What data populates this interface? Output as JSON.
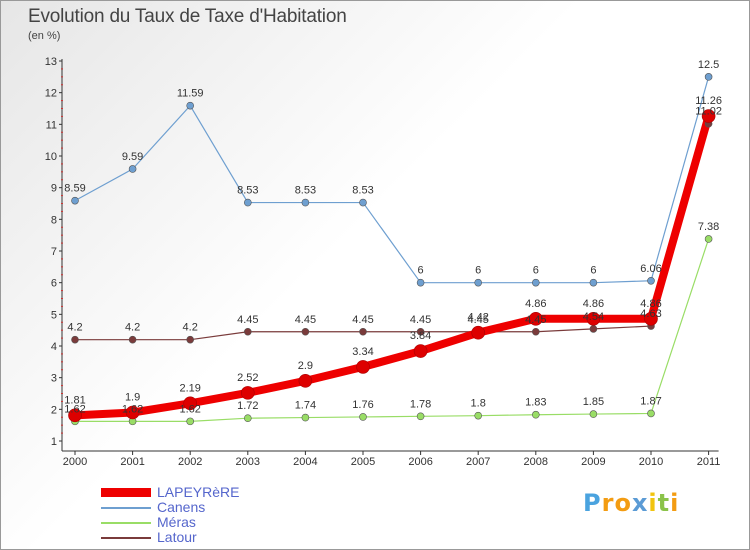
{
  "title": "Evolution du Taux de Taxe d'Habitation",
  "subtitle": "(en %)",
  "logo": {
    "letters": [
      "P",
      "r",
      "o",
      "x",
      "i",
      "t",
      "i"
    ],
    "colors": [
      "#4aa3df",
      "#f39c12",
      "#f39c12",
      "#5b9bd5",
      "#f1c40f",
      "#8bc34a",
      "#f39c12"
    ]
  },
  "chart_data": {
    "type": "line",
    "title": "Evolution du Taux de Taxe d'Habitation",
    "ylabel": "(en %)",
    "xlabel": "",
    "x": [
      "2000",
      "2001",
      "2002",
      "2003",
      "2004",
      "2005",
      "2006",
      "2007",
      "2008",
      "2009",
      "2010",
      "2011"
    ],
    "ylim": [
      1,
      13
    ],
    "yticks": [
      "1",
      "2",
      "3",
      "4",
      "5",
      "6",
      "7",
      "8",
      "9",
      "10",
      "11",
      "12",
      "13"
    ],
    "grid": false,
    "legend_position": "bottom-left",
    "series": [
      {
        "name": "LAPEYRèRE",
        "color": "#ee0000",
        "values": [
          1.81,
          1.9,
          2.19,
          2.52,
          2.9,
          3.34,
          3.84,
          4.42,
          4.86,
          4.86,
          4.86,
          11.26
        ],
        "labels": [
          "1.81",
          "1.9",
          "2.19",
          "2.52",
          "2.9",
          "3.34",
          "3.84",
          "4.42",
          "4.86",
          "4.86",
          "4.86",
          "11.26"
        ]
      },
      {
        "name": "Canens",
        "color": "#6e9fd0",
        "values": [
          8.59,
          9.59,
          11.59,
          8.53,
          8.53,
          8.53,
          6,
          6,
          6,
          6,
          6.06,
          12.5
        ],
        "labels": [
          "8.59",
          "9.59",
          "11.59",
          "8.53",
          "8.53",
          "8.53",
          "6",
          "6",
          "6",
          "6",
          "6.06",
          "12.5"
        ]
      },
      {
        "name": "Méras",
        "color": "#99dd66",
        "values": [
          1.62,
          1.62,
          1.62,
          1.72,
          1.74,
          1.76,
          1.78,
          1.8,
          1.83,
          1.85,
          1.87,
          7.38
        ],
        "labels": [
          "1.62",
          "1.62",
          "1.62",
          "1.72",
          "1.74",
          "1.76",
          "1.78",
          "1.8",
          "1.83",
          "1.85",
          "1.87",
          "7.38"
        ]
      },
      {
        "name": "Latour",
        "color": "#7a3b3b",
        "values": [
          4.2,
          4.2,
          4.2,
          4.45,
          4.45,
          4.45,
          4.45,
          4.45,
          4.45,
          4.54,
          4.63,
          11.02
        ],
        "labels": [
          "4.2",
          "4.2",
          "4.2",
          "4.45",
          "4.45",
          "4.45",
          "4.45",
          "4.45",
          "4.45",
          "4.54",
          "4.63",
          "11.02"
        ]
      }
    ]
  }
}
